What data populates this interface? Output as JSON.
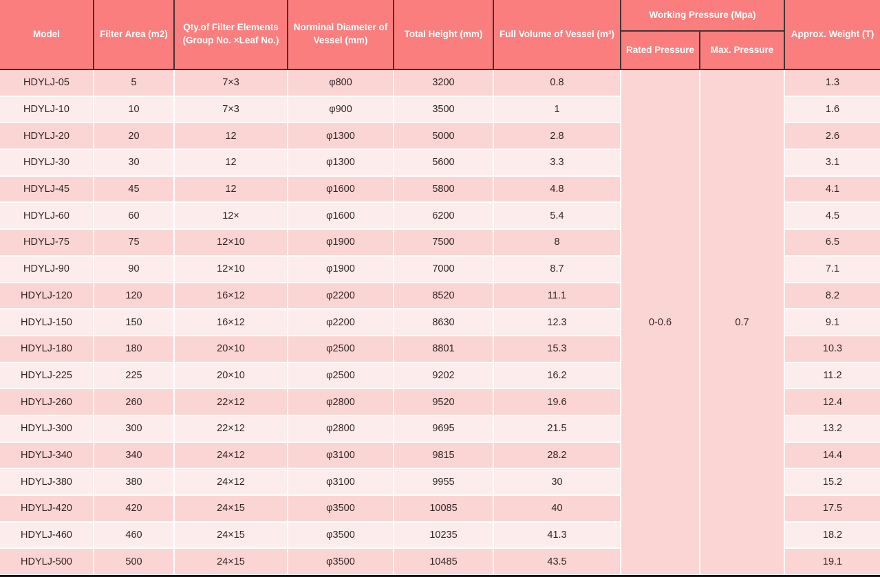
{
  "colors": {
    "header_bg": "#fb7e7e",
    "header_border": "#3f3434",
    "row_odd": "#fbd4d4",
    "row_even": "#fdecec",
    "merged_bg": "#fbd7d7",
    "body_text": "#342626",
    "header_text": "#ffffff",
    "divider": "#ffffff",
    "bottom_bar": "#161616"
  },
  "table": {
    "header": {
      "model": "Model",
      "filter_area": "Filter Area (m2)",
      "qty": "Qty.of Filter Elements (Group No. ×Leaf No.)",
      "diameter": "Norminal Diameter of Vessel (mm)",
      "total_height": "Total Height (mm)",
      "full_volume": "Full Volume of Vessel (m³)",
      "working_pressure_group": "Working Pressure (Mpa)",
      "rated_pressure": "Rated Pressure",
      "max_pressure": "Max. Pressure",
      "approx_weight": "Approx. Weight (T)"
    },
    "working_pressure": {
      "rated_value": "0-0.6",
      "max_value": "0.7"
    },
    "rows": [
      [
        "HDYLJ-05",
        "5",
        "7×3",
        "φ800",
        "3200",
        "0.8",
        "1.3"
      ],
      [
        "HDYLJ-10",
        "10",
        "7×3",
        "φ900",
        "3500",
        "1",
        "1.6"
      ],
      [
        "HDYLJ-20",
        "20",
        "12",
        "φ1300",
        "5000",
        "2.8",
        "2.6"
      ],
      [
        "HDYLJ-30",
        "30",
        "12",
        "φ1300",
        "5600",
        "3.3",
        "3.1"
      ],
      [
        "HDYLJ-45",
        "45",
        "12",
        "φ1600",
        "5800",
        "4.8",
        "4.1"
      ],
      [
        "HDYLJ-60",
        "60",
        "12×",
        "φ1600",
        "6200",
        "5.4",
        "4.5"
      ],
      [
        "HDYLJ-75",
        "75",
        "12×10",
        "φ1900",
        "7500",
        "8",
        "6.5"
      ],
      [
        "HDYLJ-90",
        "90",
        "12×10",
        "φ1900",
        "7000",
        "8.7",
        "7.1"
      ],
      [
        "HDYLJ-120",
        "120",
        "16×12",
        "φ2200",
        "8520",
        "11.1",
        "8.2"
      ],
      [
        "HDYLJ-150",
        "150",
        "16×12",
        "φ2200",
        "8630",
        "12.3",
        "9.1"
      ],
      [
        "HDYLJ-180",
        "180",
        "20×10",
        "φ2500",
        "8801",
        "15.3",
        "10.3"
      ],
      [
        "HDYLJ-225",
        "225",
        "20×10",
        "φ2500",
        "9202",
        "16.2",
        "11.2"
      ],
      [
        "HDYLJ-260",
        "260",
        "22×12",
        "φ2800",
        "9520",
        "19.6",
        "12.4"
      ],
      [
        "HDYLJ-300",
        "300",
        "22×12",
        "φ2800",
        "9695",
        "21.5",
        "13.2"
      ],
      [
        "HDYLJ-340",
        "340",
        "24×12",
        "φ3100",
        "9815",
        "28.2",
        "14.4"
      ],
      [
        "HDYLJ-380",
        "380",
        "24×12",
        "φ3100",
        "9955",
        "30",
        "15.2"
      ],
      [
        "HDYLJ-420",
        "420",
        "24×15",
        "φ3500",
        "10085",
        "40",
        "17.5"
      ],
      [
        "HDYLJ-460",
        "460",
        "24×15",
        "φ3500",
        "10235",
        "41.3",
        "18.2"
      ],
      [
        "HDYLJ-500",
        "500",
        "24×15",
        "φ3500",
        "10485",
        "43.5",
        "19.1"
      ]
    ]
  }
}
